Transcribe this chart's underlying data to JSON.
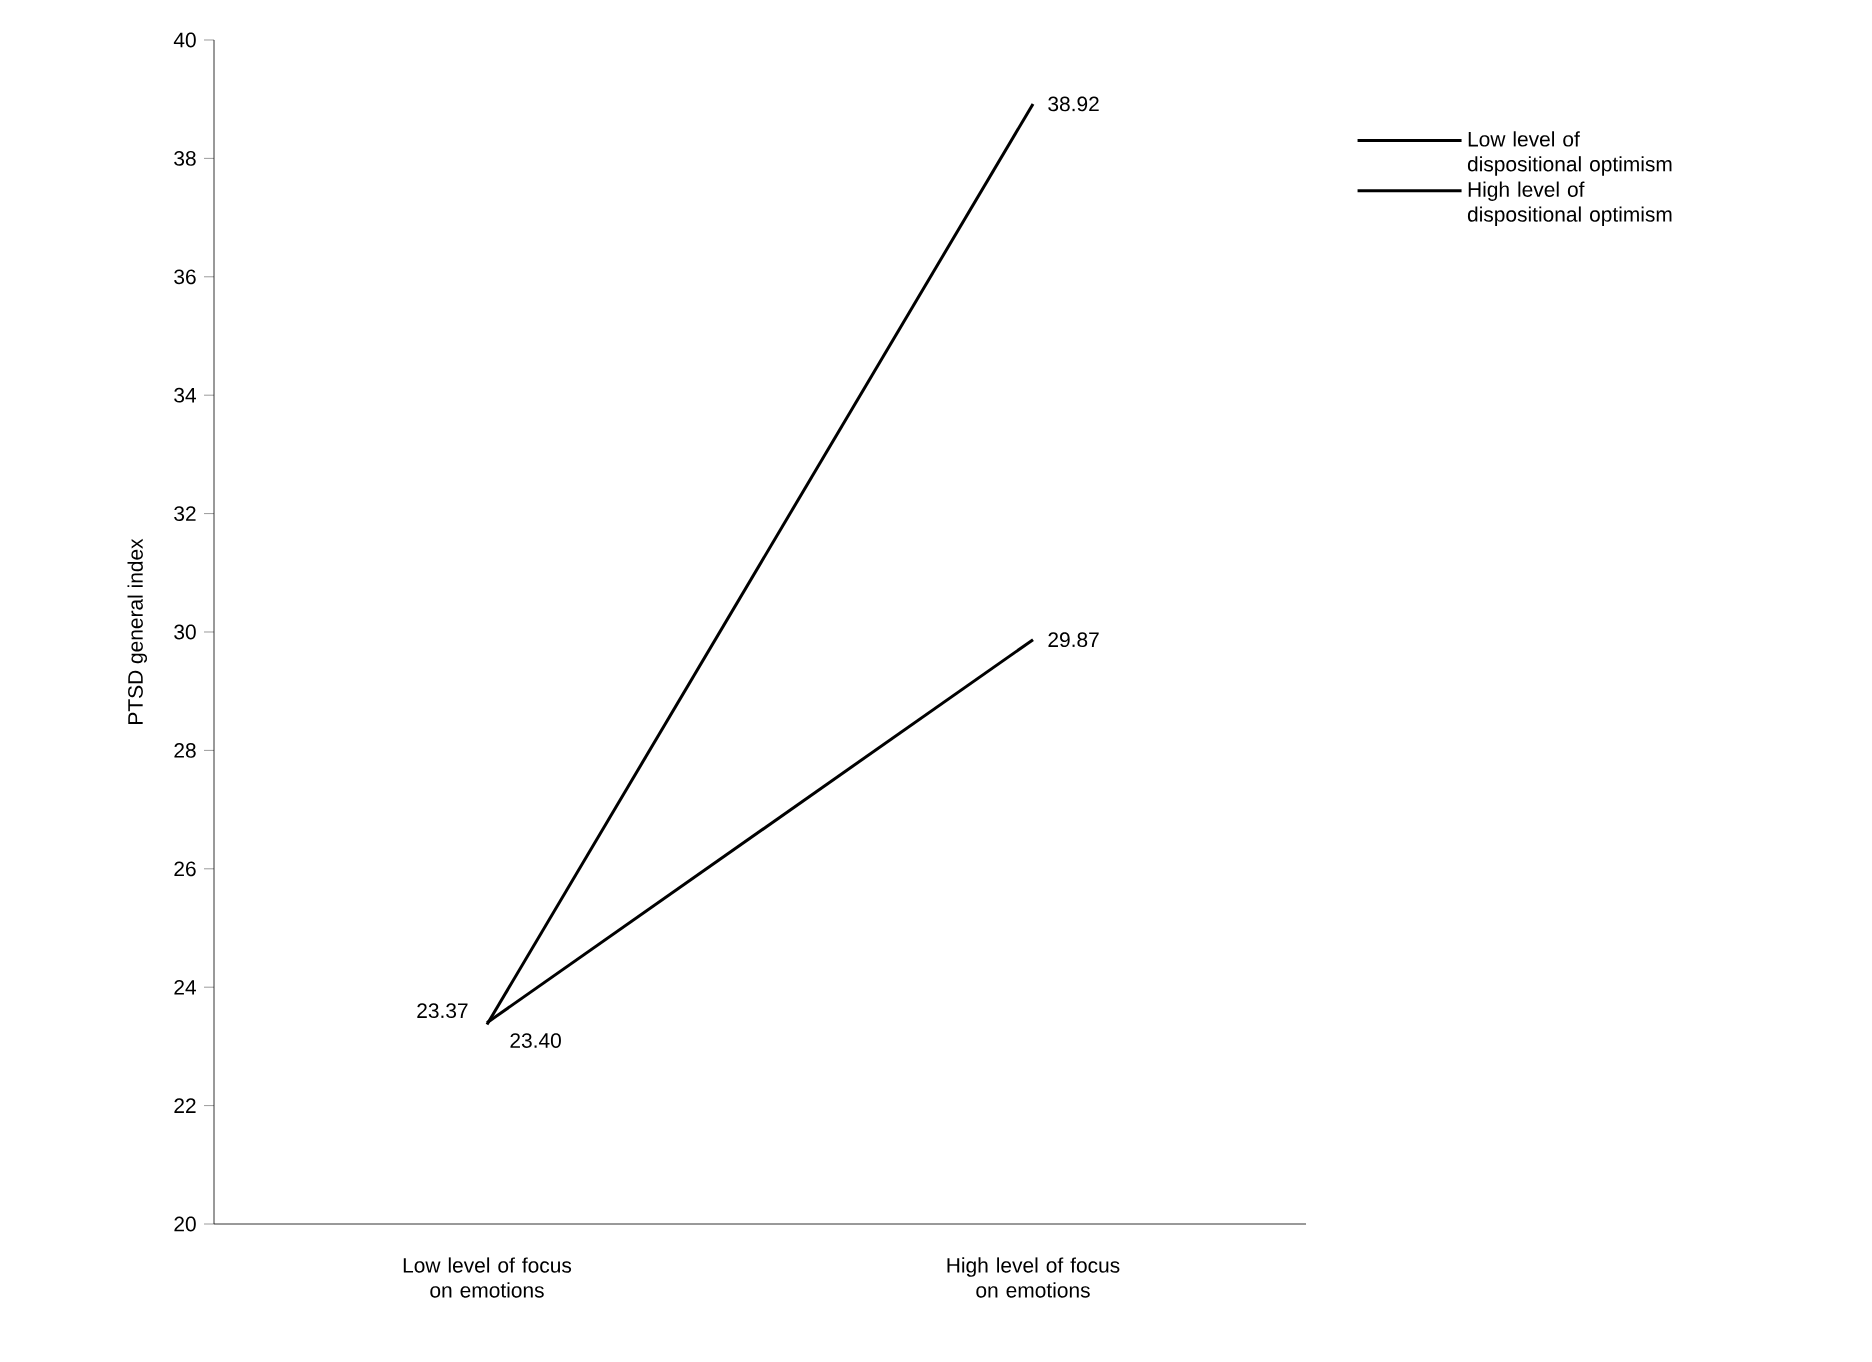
{
  "chart_data": {
    "type": "line",
    "ylabel": "PTSD general index",
    "categories": [
      "Low level of focus on emotions",
      "High level of focus on emotions"
    ],
    "series": [
      {
        "name": "Low level of dispositional optimism",
        "color": "#000000",
        "values": [
          23.37,
          38.92
        ],
        "value_labels": [
          "23.37",
          "38.92"
        ]
      },
      {
        "name": "High level of dispositional optimism",
        "color": "#000000",
        "values": [
          23.4,
          29.87
        ],
        "value_labels": [
          "23.40",
          "29.87"
        ]
      }
    ],
    "ylim": [
      20,
      40
    ],
    "yticks": [
      20,
      22,
      24,
      26,
      28,
      30,
      32,
      34,
      36,
      38,
      40
    ],
    "grid": false,
    "legend": "right",
    "marker": "none",
    "line_style": "solid"
  }
}
